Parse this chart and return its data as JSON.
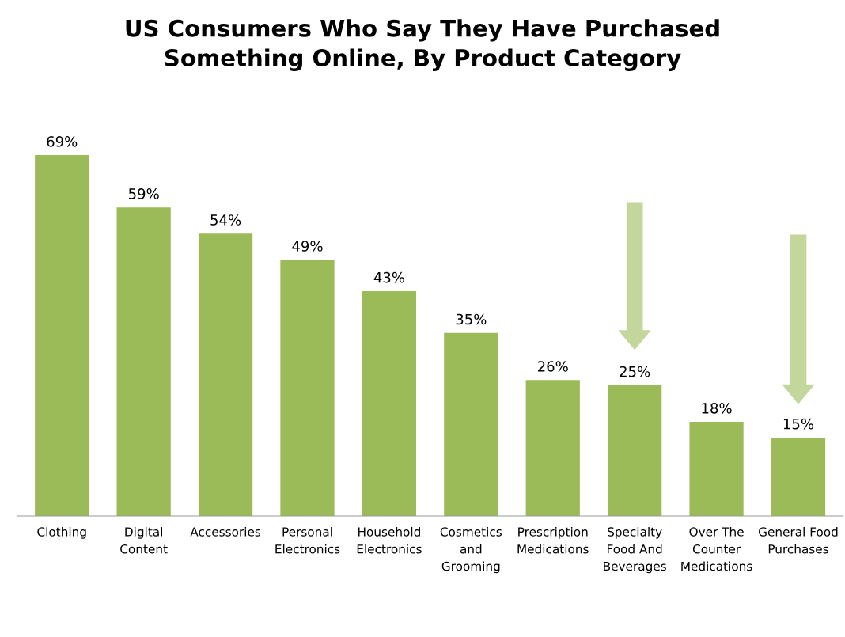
{
  "chart_data": {
    "type": "bar",
    "title": "US Consumers Who Say They Have Purchased\nSomething Online, By Product Category",
    "categories": [
      "Clothing",
      "Digital\nContent",
      "Accessories",
      "Personal\nElectronics",
      "Household\nElectronics",
      "Cosmetics\nand\nGrooming",
      "Prescription\nMedications",
      "Specialty\nFood And\nBeverages",
      "Over The\nCounter\nMedications",
      "General Food\nPurchases"
    ],
    "values": [
      69,
      59,
      54,
      49,
      43,
      35,
      26,
      25,
      18,
      15
    ],
    "value_labels": [
      "69%",
      "59%",
      "54%",
      "49%",
      "43%",
      "35%",
      "26%",
      "25%",
      "18%",
      "15%"
    ],
    "color": "#9bbb59"
  }
}
